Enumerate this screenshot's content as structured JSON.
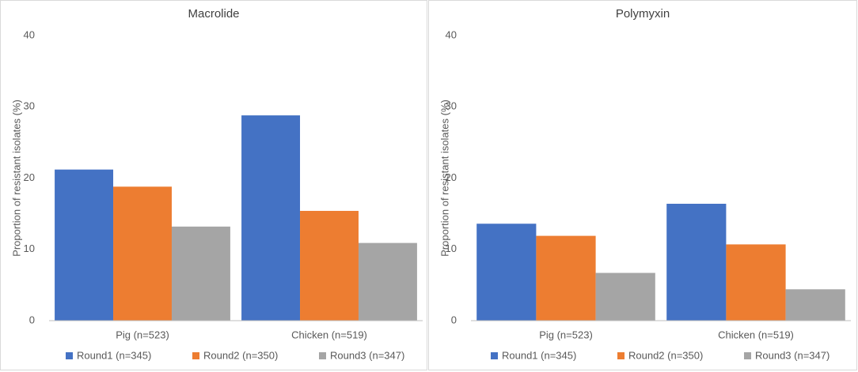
{
  "chart_data": [
    {
      "type": "bar",
      "title": "Macrolide",
      "y_label": "Proportion of resistant isolates (%)",
      "categories": [
        "Pig (n=523)",
        "Chicken (n=519)"
      ],
      "series": [
        {
          "name": "Round1 (n=345)",
          "color": "#4472c4",
          "values": [
            21.2,
            28.8
          ]
        },
        {
          "name": "Round2 (n=350)",
          "color": "#ed7d31",
          "values": [
            18.8,
            15.4
          ]
        },
        {
          "name": "Round3 (n=347)",
          "color": "#a5a5a5",
          "values": [
            13.2,
            10.9
          ]
        }
      ],
      "ylim": [
        0,
        40
      ],
      "yticks": [
        0,
        10,
        20,
        30,
        40
      ]
    },
    {
      "type": "bar",
      "title": "Polymyxin",
      "y_label": "Proportion of resistant isolates (%)",
      "categories": [
        "Pig (n=523)",
        "Chicken (n=519)"
      ],
      "series": [
        {
          "name": "Round1 (n=345)",
          "color": "#4472c4",
          "values": [
            13.6,
            16.4
          ]
        },
        {
          "name": "Round2 (n=350)",
          "color": "#ed7d31",
          "values": [
            11.9,
            10.7
          ]
        },
        {
          "name": "Round3 (n=347)",
          "color": "#a5a5a5",
          "values": [
            6.7,
            4.4
          ]
        }
      ],
      "ylim": [
        0,
        40
      ],
      "yticks": [
        0,
        10,
        20,
        30,
        40
      ]
    }
  ]
}
